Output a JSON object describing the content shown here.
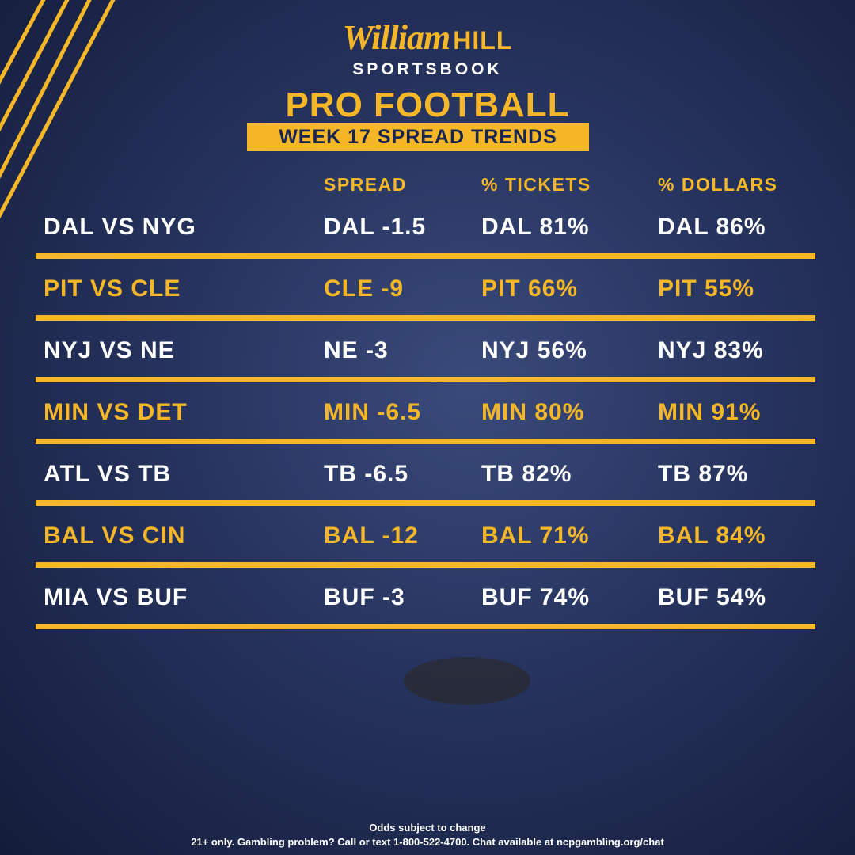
{
  "header": {
    "brand": "William",
    "brand_bold": "HILL",
    "brand_sub": "SPORTSBOOK",
    "title": "PRO FOOTBALL",
    "subtitle": "WEEK 17 SPREAD TRENDS"
  },
  "table": {
    "columns": [
      "SPREAD",
      "% TICKETS",
      "% DOLLARS"
    ],
    "rows": [
      [
        "DAL VS NYG",
        "DAL -1.5",
        "DAL 81%",
        "DAL 86%"
      ],
      [
        "PIT VS CLE",
        "CLE -9",
        "PIT 66%",
        "PIT 55%"
      ],
      [
        "NYJ VS NE",
        "NE -3",
        "NYJ 56%",
        "NYJ 83%"
      ],
      [
        "MIN VS DET",
        "MIN -6.5",
        "MIN 80%",
        "MIN 91%"
      ],
      [
        "ATL VS TB",
        "TB -6.5",
        "TB 82%",
        "TB 87%"
      ],
      [
        "BAL VS CIN",
        "BAL -12",
        "BAL 71%",
        "BAL 84%"
      ],
      [
        "MIA VS BUF",
        "BUF -3",
        "BUF 74%",
        "BUF 54%"
      ]
    ]
  },
  "footer": {
    "line1": "Odds subject to change",
    "line2": "21+ only. Gambling problem? Call or text 1-800-522-4700. Chat available at ncpgambling.org/chat"
  }
}
